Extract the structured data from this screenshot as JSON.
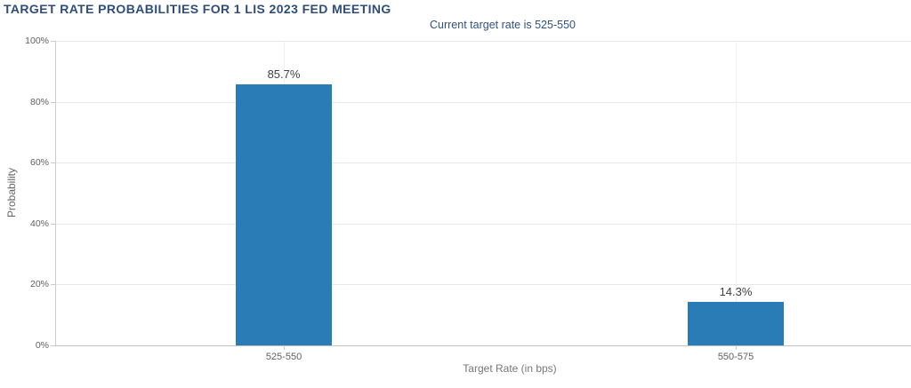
{
  "header": {
    "title": "TARGET RATE PROBABILITIES FOR 1 LIS 2023 FED MEETING",
    "subtitle": "Current target rate is 525-550"
  },
  "chart_data": {
    "type": "bar",
    "title": "TARGET RATE PROBABILITIES FOR 1 LIS 2023 FED MEETING",
    "subtitle": "Current target rate is 525-550",
    "categories": [
      "525-550",
      "550-575"
    ],
    "values": [
      85.7,
      14.3
    ],
    "value_labels": [
      "85.7%",
      "14.3%"
    ],
    "xlabel": "Target Rate (in bps)",
    "ylabel": "Probability",
    "ylim": [
      0,
      100
    ],
    "yticks": [
      0,
      20,
      40,
      60,
      80,
      100
    ],
    "ytick_labels": [
      "0%",
      "20%",
      "40%",
      "60%",
      "80%",
      "100%"
    ],
    "grid": true,
    "legend_position": "none",
    "bar_color": "#2a7cb7",
    "title_color": "#2e4d7b",
    "axis_text_color": "#606060"
  }
}
